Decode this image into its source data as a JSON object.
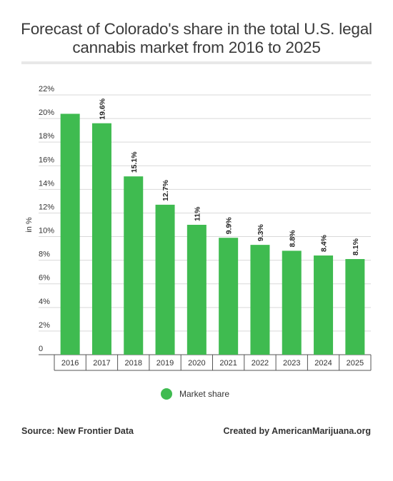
{
  "colors": {
    "bar": "#3fbb50",
    "grid": "#d9d9d9",
    "axis": "#555555"
  },
  "legend": {
    "label": "Market share",
    "icon": "circle"
  },
  "footer": {
    "source": "Source: New Frontier Data",
    "credit": "Created by AmericanMarijuana.org"
  },
  "chart_data": {
    "type": "bar",
    "title": "Forecast of Colorado's share in the total U.S. legal cannabis market from 2016 to 2025",
    "ylabel": "in %",
    "xlabel": "",
    "categories": [
      "2016",
      "2017",
      "2018",
      "2019",
      "2020",
      "2021",
      "2022",
      "2023",
      "2024",
      "2025"
    ],
    "series": [
      {
        "name": "Market share",
        "values": [
          20.4,
          19.6,
          15.1,
          12.7,
          11,
          9.9,
          9.3,
          8.8,
          8.4,
          8.1
        ],
        "labels": [
          "",
          "19.6%",
          "15.1%",
          "12.7%",
          "11%",
          "9.9%",
          "9.3%",
          "8.8%",
          "8.4%",
          "8.1%"
        ]
      }
    ],
    "yticks": [
      "0",
      "2%",
      "4%",
      "6%",
      "8%",
      "10%",
      "12%",
      "14%",
      "16%",
      "18%",
      "20%",
      "22%"
    ],
    "ylim": [
      0,
      22
    ],
    "grid": true,
    "legend_position": "bottom"
  }
}
